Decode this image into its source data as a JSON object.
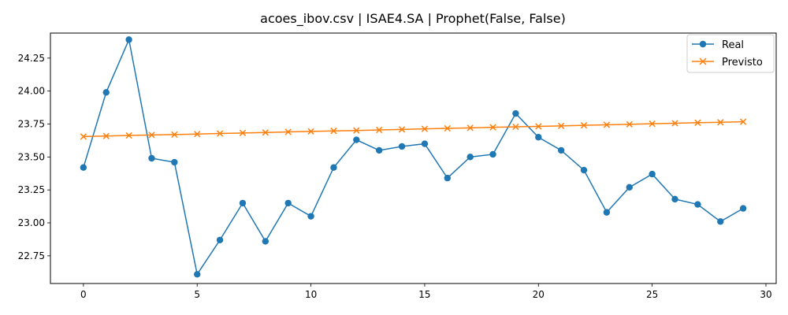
{
  "chart_data": {
    "type": "line",
    "title": "acoes_ibov.csv | ISAE4.SA | Prophet(False, False)",
    "xlabel": "",
    "ylabel": "",
    "xlim": [
      -1.45,
      30.45
    ],
    "ylim": [
      22.54,
      24.44
    ],
    "xticks": [
      0,
      5,
      10,
      15,
      20,
      25,
      30
    ],
    "xtick_labels": [
      "0",
      "5",
      "10",
      "15",
      "20",
      "25",
      "30"
    ],
    "yticks": [
      22.75,
      23.0,
      23.25,
      23.5,
      23.75,
      24.0,
      24.25
    ],
    "ytick_labels": [
      "22.75",
      "23.00",
      "23.25",
      "23.50",
      "23.75",
      "24.00",
      "24.25"
    ],
    "grid": false,
    "legend_position": "top-right",
    "x": [
      0,
      1,
      2,
      3,
      4,
      5,
      6,
      7,
      8,
      9,
      10,
      11,
      12,
      13,
      14,
      15,
      16,
      17,
      18,
      19,
      20,
      21,
      22,
      23,
      24,
      25,
      26,
      27,
      28,
      29
    ],
    "series": [
      {
        "name": "Real",
        "color": "#1f77b4",
        "marker": "circle",
        "values": [
          23.42,
          23.99,
          24.39,
          23.49,
          23.46,
          22.61,
          22.87,
          23.15,
          22.86,
          23.15,
          23.05,
          23.42,
          23.63,
          23.55,
          23.58,
          23.6,
          23.34,
          23.5,
          23.52,
          23.83,
          23.65,
          23.55,
          23.4,
          23.08,
          23.27,
          23.37,
          23.18,
          23.14,
          23.01,
          23.11
        ]
      },
      {
        "name": "Previsto",
        "color": "#ff7f0e",
        "marker": "x",
        "values": [
          23.655,
          23.659,
          23.663,
          23.667,
          23.67,
          23.674,
          23.678,
          23.682,
          23.686,
          23.69,
          23.694,
          23.698,
          23.701,
          23.705,
          23.709,
          23.713,
          23.717,
          23.721,
          23.725,
          23.729,
          23.732,
          23.736,
          23.74,
          23.744,
          23.748,
          23.752,
          23.756,
          23.76,
          23.763,
          23.767
        ]
      }
    ]
  }
}
